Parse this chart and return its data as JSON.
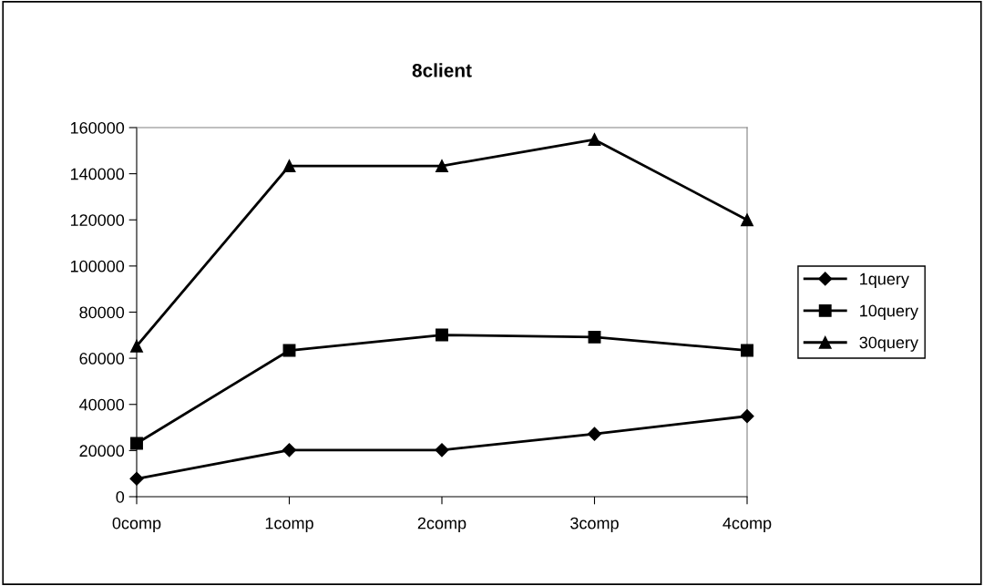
{
  "chart_data": {
    "type": "line",
    "title": "8client",
    "categories": [
      "0comp",
      "1comp",
      "2comp",
      "3comp",
      "4comp"
    ],
    "series": [
      {
        "name": "1query",
        "color": "#000000",
        "marker": "diamond",
        "values": [
          7800,
          20200,
          20200,
          27200,
          34900
        ]
      },
      {
        "name": "10query",
        "color": "#000000",
        "marker": "square",
        "values": [
          23100,
          63400,
          70100,
          69200,
          63400
        ]
      },
      {
        "name": "30query",
        "color": "#000000",
        "marker": "triangle",
        "values": [
          65300,
          143400,
          143400,
          154800,
          120000
        ]
      }
    ],
    "ylim": [
      0,
      160000
    ],
    "yticks": [
      0,
      20000,
      40000,
      60000,
      80000,
      100000,
      120000,
      140000,
      160000
    ],
    "grid": false,
    "legend": "right",
    "line_style": "solid"
  }
}
